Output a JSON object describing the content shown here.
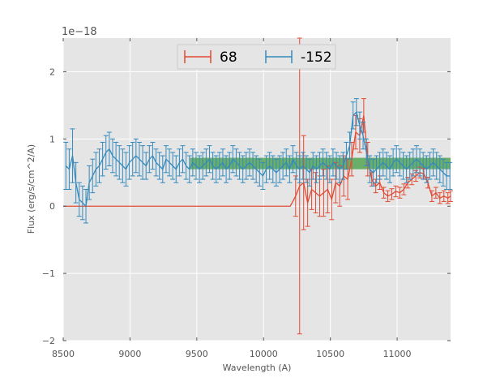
{
  "chart_data": {
    "type": "line",
    "xlabel": "Wavelength (A)",
    "ylabel": "Flux (erg/s/cm^2/A)",
    "y_offset_label": "1e−18",
    "xlim": [
      8500,
      11400
    ],
    "ylim": [
      -2,
      2.5
    ],
    "x_ticks": [
      8500,
      9000,
      9500,
      10000,
      10500,
      11000
    ],
    "y_ticks": [
      -2,
      -1,
      0,
      1,
      2
    ],
    "grid": true,
    "legend_position": "top-center",
    "colors": {
      "plot_background": "#e5e5e5",
      "grid": "#ffffff",
      "band": "#4aa04a"
    },
    "series": [
      {
        "name": "68",
        "color": "#e24a33",
        "error_bars": true,
        "x": [
          8500,
          10200,
          10240,
          10270,
          10300,
          10330,
          10360,
          10390,
          10420,
          10450,
          10480,
          10510,
          10540,
          10570,
          10600,
          10630,
          10660,
          10690,
          10720,
          10750,
          10780,
          10810,
          10840,
          10870,
          10900,
          10930,
          10960,
          10990,
          11020,
          11050,
          11080,
          11110,
          11140,
          11170,
          11200,
          11230,
          11260,
          11290,
          11320,
          11350,
          11380,
          11400
        ],
        "y": [
          0,
          0,
          0.15,
          0.3,
          0.35,
          0.05,
          0.25,
          0.2,
          0.15,
          0.2,
          0.25,
          0.1,
          0.35,
          0.3,
          0.45,
          0.4,
          0.7,
          1.1,
          1.05,
          1.35,
          0.7,
          0.4,
          0.3,
          0.35,
          0.2,
          0.15,
          0.18,
          0.22,
          0.2,
          0.25,
          0.35,
          0.4,
          0.45,
          0.5,
          0.48,
          0.35,
          0.15,
          0.2,
          0.12,
          0.15,
          0.12,
          0.15
        ],
        "err": [
          0,
          0,
          0.3,
          2.2,
          0.7,
          0.35,
          0.3,
          0.3,
          0.3,
          0.35,
          0.35,
          0.3,
          0.3,
          0.3,
          0.3,
          0.3,
          0.25,
          0.25,
          0.25,
          0.25,
          0.25,
          0.1,
          0.1,
          0.1,
          0.08,
          0.08,
          0.08,
          0.08,
          0.08,
          0.08,
          0.08,
          0.08,
          0.08,
          0.08,
          0.08,
          0.08,
          0.08,
          0.08,
          0.08,
          0.08,
          0.08,
          0.08
        ]
      },
      {
        "name": "-152",
        "color": "#348abd",
        "error_bars": true,
        "x": [
          8520,
          8545,
          8570,
          8595,
          8620,
          8645,
          8670,
          8695,
          8720,
          8745,
          8770,
          8795,
          8820,
          8845,
          8870,
          8895,
          8920,
          8945,
          8970,
          8995,
          9020,
          9045,
          9070,
          9095,
          9120,
          9145,
          9170,
          9195,
          9220,
          9245,
          9270,
          9295,
          9320,
          9345,
          9370,
          9395,
          9420,
          9445,
          9470,
          9495,
          9520,
          9545,
          9570,
          9595,
          9620,
          9645,
          9670,
          9695,
          9720,
          9745,
          9770,
          9795,
          9820,
          9845,
          9870,
          9895,
          9920,
          9945,
          9970,
          9995,
          10020,
          10045,
          10070,
          10095,
          10120,
          10145,
          10170,
          10195,
          10220,
          10245,
          10270,
          10295,
          10320,
          10345,
          10370,
          10395,
          10420,
          10445,
          10470,
          10495,
          10520,
          10545,
          10570,
          10595,
          10620,
          10645,
          10670,
          10695,
          10720,
          10745,
          10770,
          10795,
          10820,
          10845,
          10870,
          10895,
          10920,
          10945,
          10970,
          10995,
          11020,
          11045,
          11070,
          11095,
          11120,
          11145,
          11170,
          11195,
          11220,
          11245,
          11270,
          11295,
          11320,
          11345,
          11370,
          11395
        ],
        "y": [
          0.6,
          0.55,
          0.75,
          0.35,
          0.1,
          0.05,
          0.0,
          0.35,
          0.45,
          0.55,
          0.6,
          0.7,
          0.8,
          0.85,
          0.75,
          0.7,
          0.65,
          0.6,
          0.55,
          0.65,
          0.7,
          0.75,
          0.7,
          0.65,
          0.6,
          0.7,
          0.75,
          0.65,
          0.6,
          0.55,
          0.7,
          0.65,
          0.6,
          0.55,
          0.65,
          0.7,
          0.6,
          0.55,
          0.65,
          0.6,
          0.55,
          0.6,
          0.65,
          0.7,
          0.6,
          0.55,
          0.6,
          0.65,
          0.55,
          0.6,
          0.7,
          0.65,
          0.6,
          0.55,
          0.6,
          0.65,
          0.6,
          0.55,
          0.5,
          0.45,
          0.55,
          0.6,
          0.55,
          0.5,
          0.55,
          0.6,
          0.65,
          0.55,
          0.7,
          0.6,
          0.55,
          0.6,
          0.55,
          0.5,
          0.6,
          0.55,
          0.6,
          0.65,
          0.6,
          0.55,
          0.65,
          0.6,
          0.55,
          0.6,
          0.75,
          0.9,
          1.35,
          1.4,
          1.2,
          1.05,
          0.8,
          0.55,
          0.5,
          0.55,
          0.6,
          0.65,
          0.6,
          0.55,
          0.65,
          0.7,
          0.65,
          0.6,
          0.55,
          0.6,
          0.65,
          0.7,
          0.65,
          0.6,
          0.55,
          0.6,
          0.65,
          0.6,
          0.55,
          0.5,
          0.45,
          0.45
        ],
        "err": [
          0.35,
          0.3,
          0.4,
          0.3,
          0.25,
          0.25,
          0.25,
          0.25,
          0.25,
          0.25,
          0.25,
          0.25,
          0.25,
          0.25,
          0.25,
          0.25,
          0.25,
          0.25,
          0.25,
          0.25,
          0.25,
          0.25,
          0.25,
          0.25,
          0.2,
          0.2,
          0.2,
          0.2,
          0.2,
          0.2,
          0.2,
          0.2,
          0.2,
          0.2,
          0.2,
          0.2,
          0.2,
          0.2,
          0.2,
          0.2,
          0.2,
          0.2,
          0.2,
          0.2,
          0.2,
          0.2,
          0.2,
          0.2,
          0.2,
          0.2,
          0.2,
          0.2,
          0.2,
          0.2,
          0.2,
          0.2,
          0.2,
          0.2,
          0.2,
          0.2,
          0.2,
          0.2,
          0.2,
          0.2,
          0.2,
          0.2,
          0.2,
          0.2,
          0.2,
          0.2,
          0.2,
          0.2,
          0.2,
          0.2,
          0.2,
          0.2,
          0.2,
          0.2,
          0.2,
          0.2,
          0.2,
          0.2,
          0.2,
          0.2,
          0.2,
          0.2,
          0.2,
          0.2,
          0.2,
          0.2,
          0.2,
          0.2,
          0.2,
          0.2,
          0.2,
          0.2,
          0.2,
          0.2,
          0.2,
          0.2,
          0.2,
          0.2,
          0.2,
          0.2,
          0.2,
          0.2,
          0.2,
          0.2,
          0.2,
          0.2,
          0.2,
          0.2,
          0.2,
          0.2,
          0.2,
          0.2
        ]
      }
    ],
    "band": {
      "x_range": [
        9450,
        11400
      ],
      "y_range": [
        0.55,
        0.72
      ]
    }
  }
}
